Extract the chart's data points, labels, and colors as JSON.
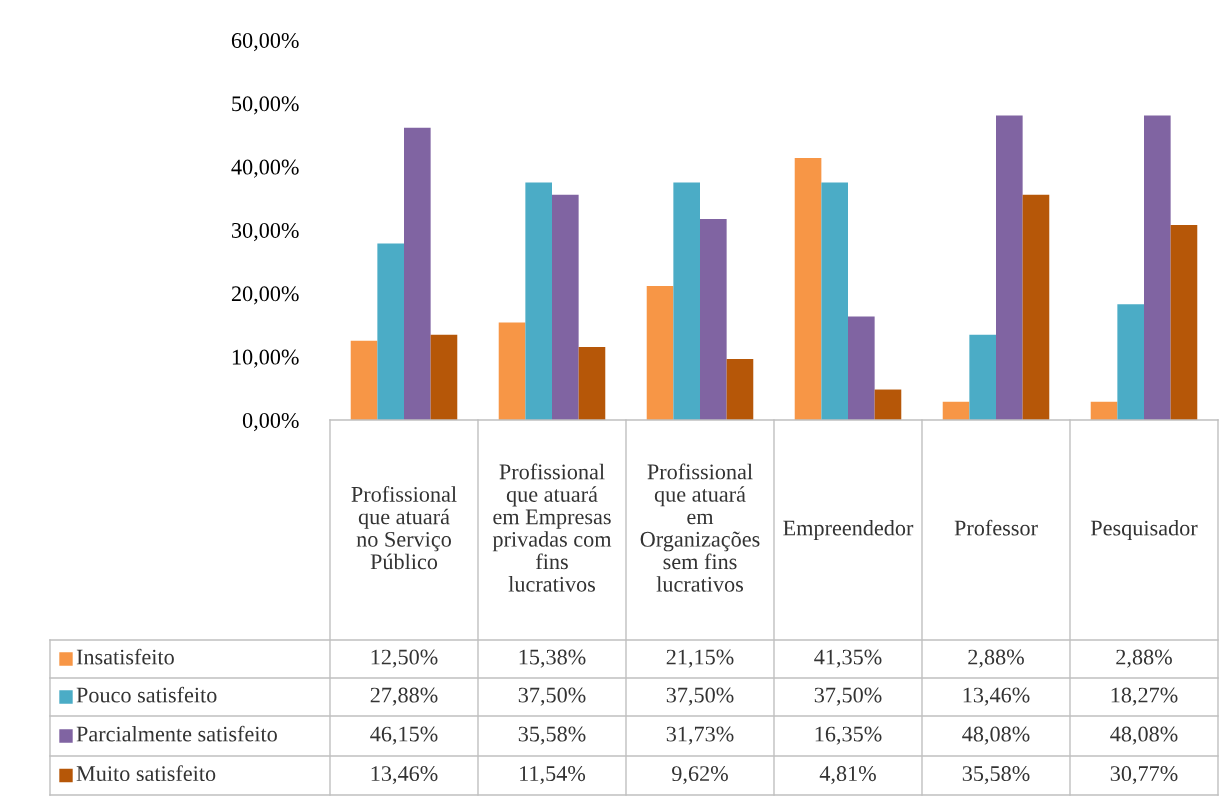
{
  "chart_data": {
    "type": "bar",
    "categories": [
      "Profissional que atuará no Serviço Público",
      "Profissional que atuará em Empresas privadas com fins lucrativos",
      "Profissional que atuará em Organizações sem fins lucrativos",
      "Empreendedor",
      "Professor",
      "Pesquisador"
    ],
    "series": [
      {
        "name": "Insatisfeito",
        "color": "#f79646",
        "values": [
          12.5,
          15.38,
          21.15,
          41.35,
          2.88,
          2.88
        ],
        "value_labels": [
          "12,50%",
          "15,38%",
          "21,15%",
          "41,35%",
          "2,88%",
          "2,88%"
        ]
      },
      {
        "name": "Pouco satisfeito",
        "color": "#4bacc6",
        "values": [
          27.88,
          37.5,
          37.5,
          37.5,
          13.46,
          18.27
        ],
        "value_labels": [
          "27,88%",
          "37,50%",
          "37,50%",
          "37,50%",
          "13,46%",
          "18,27%"
        ]
      },
      {
        "name": "Parcialmente satisfeito",
        "color": "#8064a2",
        "values": [
          46.15,
          35.58,
          31.73,
          16.35,
          48.08,
          48.08
        ],
        "value_labels": [
          "46,15%",
          "35,58%",
          "31,73%",
          "16,35%",
          "48,08%",
          "48,08%"
        ]
      },
      {
        "name": "Muito satisfeito",
        "color": "#b65708",
        "values": [
          13.46,
          11.54,
          9.62,
          4.81,
          35.58,
          30.77
        ],
        "value_labels": [
          "13,46%",
          "11,54%",
          "9,62%",
          "4,81%",
          "35,58%",
          "30,77%"
        ]
      }
    ],
    "ylim": [
      0,
      60
    ],
    "yticks": [
      {
        "value": 0,
        "label": "0,00%"
      },
      {
        "value": 10,
        "label": "10,00%"
      },
      {
        "value": 20,
        "label": "20,00%"
      },
      {
        "value": 30,
        "label": "30,00%"
      },
      {
        "value": 40,
        "label": "40,00%"
      },
      {
        "value": 50,
        "label": "50,00%"
      },
      {
        "value": 60,
        "label": "60,00%"
      }
    ],
    "grid": false,
    "legend": "bottom left"
  }
}
